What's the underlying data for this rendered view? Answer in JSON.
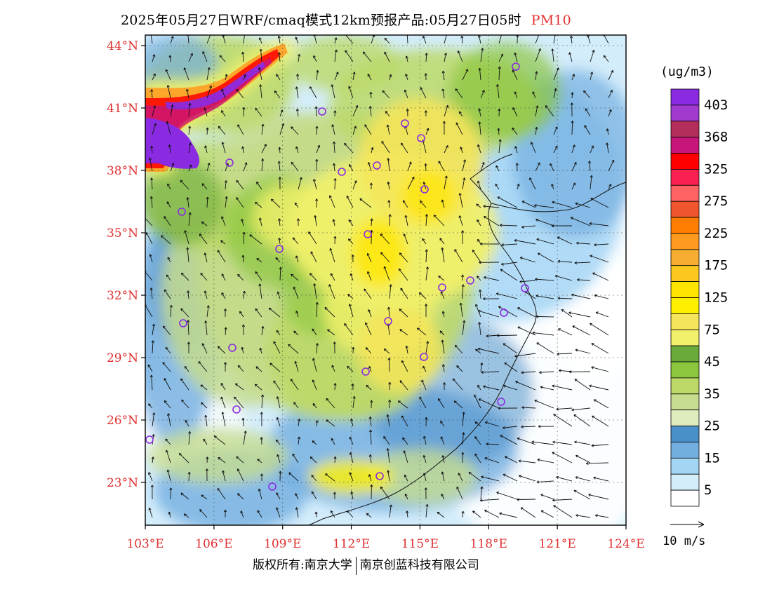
{
  "title": {
    "text": "2025年05月27日WRF/cmaq模式12km预报产品:05月27日05时",
    "pollutant": "PM10",
    "pollutant_color": "#e23030"
  },
  "axes": {
    "lat_labels": [
      "44°N",
      "41°N",
      "38°N",
      "35°N",
      "32°N",
      "29°N",
      "26°N",
      "23°N"
    ],
    "lon_labels": [
      "103°E",
      "106°E",
      "109°E",
      "112°E",
      "115°E",
      "118°E",
      "121°E",
      "124°E"
    ],
    "label_color": "#e03030"
  },
  "legend": {
    "unit": "(ug/m3)",
    "items": [
      {
        "label": "403",
        "color": "#8a2be2"
      },
      {
        "label": "",
        "color": "#a33ad0"
      },
      {
        "label": "368",
        "color": "#b32e5b"
      },
      {
        "label": "",
        "color": "#c8157a"
      },
      {
        "label": "325",
        "color": "#ff0000"
      },
      {
        "label": "",
        "color": "#f8214f"
      },
      {
        "label": "275",
        "color": "#ff6262"
      },
      {
        "label": "",
        "color": "#f0562d"
      },
      {
        "label": "225",
        "color": "#ff7d00"
      },
      {
        "label": "",
        "color": "#ff9a1e"
      },
      {
        "label": "175",
        "color": "#f6ad32"
      },
      {
        "label": "",
        "color": "#fcc81e"
      },
      {
        "label": "125",
        "color": "#ffe600"
      },
      {
        "label": "",
        "color": "#fff000"
      },
      {
        "label": "75",
        "color": "#f4e55a"
      },
      {
        "label": "",
        "color": "#f0f06a"
      },
      {
        "label": "45",
        "color": "#6aaa3a"
      },
      {
        "label": "",
        "color": "#8cc63f"
      },
      {
        "label": "35",
        "color": "#bcd968"
      },
      {
        "label": "",
        "color": "#c6dc8e"
      },
      {
        "label": "25",
        "color": "#dfecbd"
      },
      {
        "label": "",
        "color": "#4a90c8"
      },
      {
        "label": "15",
        "color": "#73aee0"
      },
      {
        "label": "",
        "color": "#a3d5f5"
      },
      {
        "label": "5",
        "color": "#d4edfb"
      },
      {
        "label": "",
        "color": "#ffffff"
      }
    ]
  },
  "wind_scale": {
    "label": "10 m/s"
  },
  "footer": {
    "left": "版权所有:南京大学",
    "right": "南京创蓝科技有限公司"
  }
}
